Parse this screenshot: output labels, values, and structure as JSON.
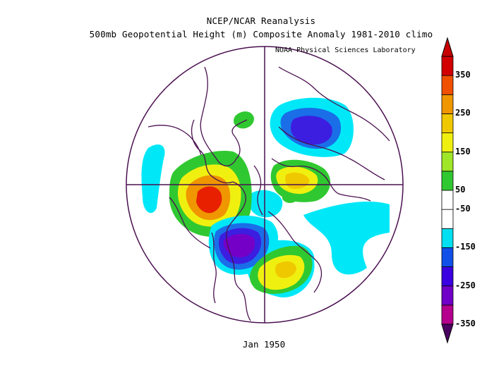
{
  "header": {
    "title_line1": "NCEP/NCAR Reanalysis",
    "title_line2": "500mb Geopotential Height (m) Composite Anomaly 1981-2010 climo",
    "credit": "NOAA Physical Sciences Laboratory"
  },
  "map": {
    "projection": "north-polar-stereographic",
    "date_label": "Jan 1950"
  },
  "colorbar": {
    "labels": [
      "350",
      "250",
      "150",
      "50",
      "-50",
      "-150",
      "-250",
      "-350"
    ],
    "colors": [
      "#b4008c",
      "#7000c8",
      "#3a00e0",
      "#1050e8",
      "#00e0f0",
      "#ffffff",
      "#ffffff",
      "#30c830",
      "#a0e628",
      "#f0f010",
      "#f0c800",
      "#f09600",
      "#f05000",
      "#d20000"
    ],
    "under_color": "#4a0060",
    "over_color": "#c80000"
  }
}
